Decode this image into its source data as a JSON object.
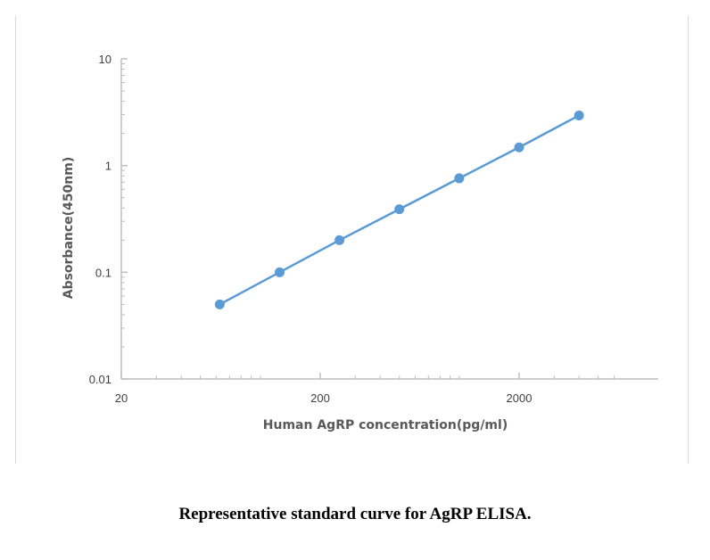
{
  "chart_data": {
    "type": "scatter",
    "title": "",
    "xlabel": "Human AgRP concentration(pg/ml)",
    "ylabel": "Absorbance(450nm)",
    "x_scale": "log",
    "y_scale": "log",
    "xlim": [
      20,
      6000
    ],
    "ylim": [
      0.01,
      10
    ],
    "x_ticks": [
      "20",
      "200",
      "2000"
    ],
    "y_ticks": [
      "0.01",
      "0.1",
      "1",
      "10"
    ],
    "series": [
      {
        "name": "",
        "color": "#5b9bd5",
        "x": [
          62.5,
          125,
          250,
          500,
          1000,
          2000,
          4000
        ],
        "y": [
          0.05,
          0.1,
          0.2,
          0.39,
          0.76,
          1.48,
          2.95
        ]
      }
    ],
    "grid": false,
    "legend": "none"
  },
  "caption": "Representative standard curve for AgRP ELISA."
}
